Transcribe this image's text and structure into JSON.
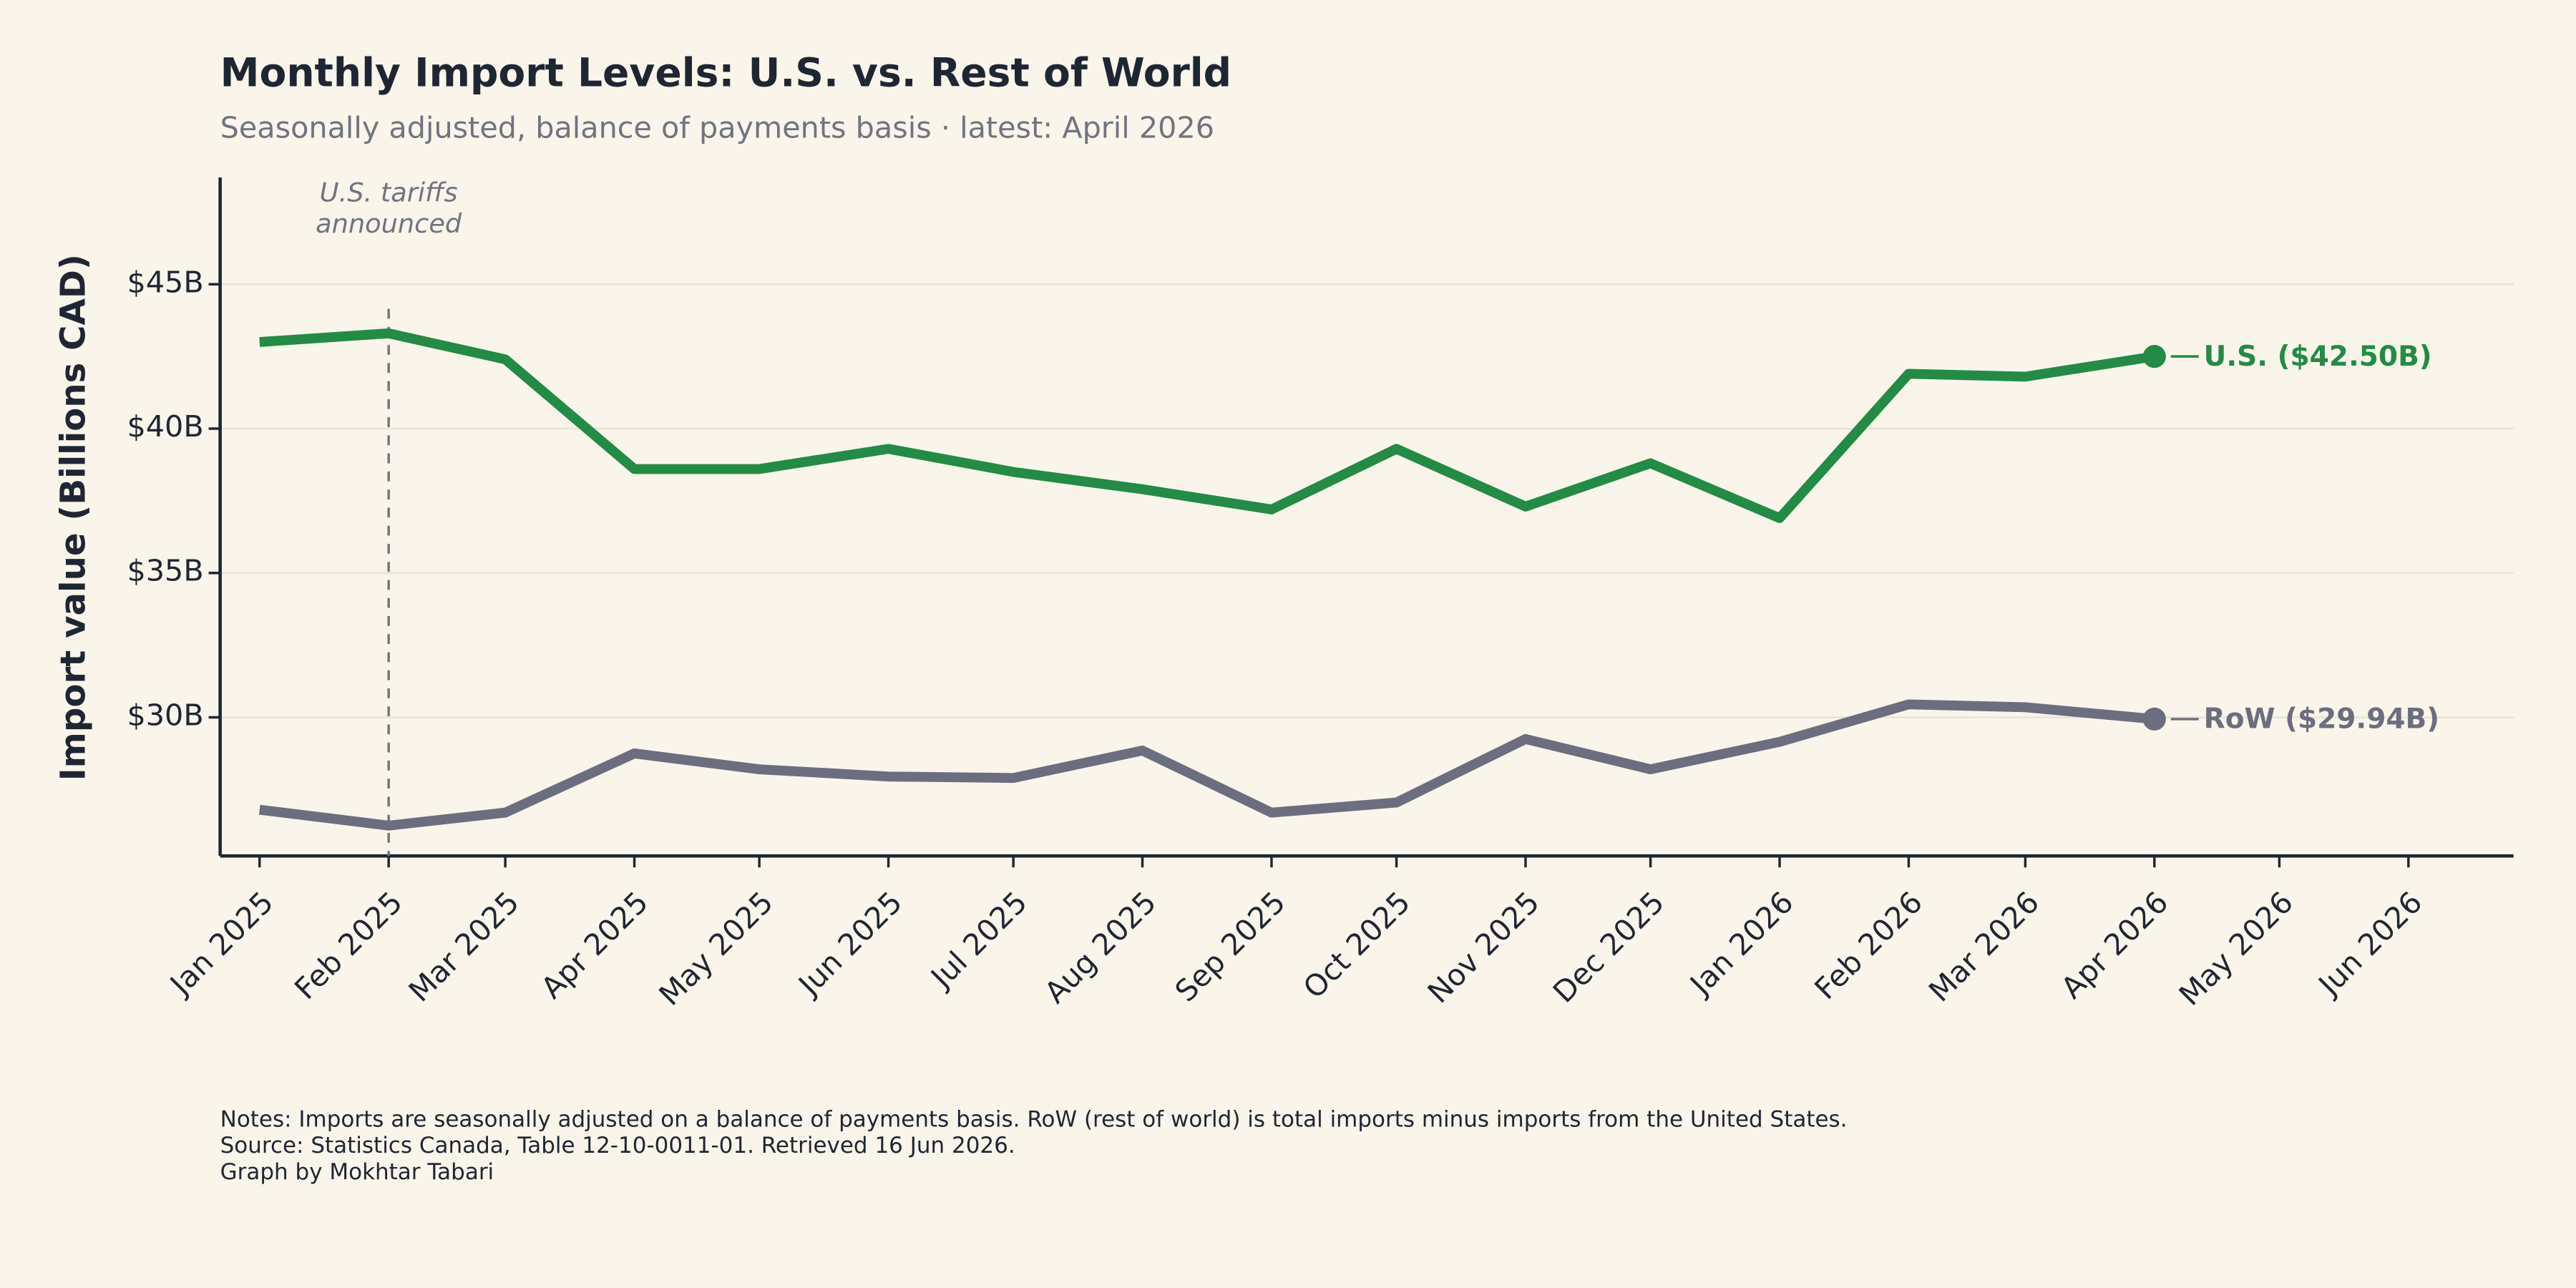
{
  "chart_data": {
    "type": "line",
    "title": "Monthly Import Levels: U.S. vs. Rest of World",
    "subtitle": "Seasonally adjusted, balance of payments basis · latest: April 2026",
    "y_label": "Import value (Billions CAD)",
    "x": [
      "Jan 2025",
      "Feb 2025",
      "Mar 2025",
      "Apr 2025",
      "May 2025",
      "Jun 2025",
      "Jul 2025",
      "Aug 2025",
      "Sep 2025",
      "Oct 2025",
      "Nov 2025",
      "Dec 2025",
      "Jan 2026",
      "Feb 2026",
      "Mar 2026",
      "Apr 2026"
    ],
    "xticks": [
      "Jan 2025",
      "Feb 2025",
      "Mar 2025",
      "Apr 2025",
      "May 2025",
      "Jun 2025",
      "Jul 2025",
      "Aug 2025",
      "Sep 2025",
      "Oct 2025",
      "Nov 2025",
      "Dec 2025",
      "Jan 2026",
      "Feb 2026",
      "Mar 2026",
      "Apr 2026",
      "May 2026",
      "Jun 2026"
    ],
    "series": [
      {
        "name": "U.S. ($42.50B)",
        "color": "#238b45",
        "values": [
          43.0,
          43.3,
          42.4,
          38.6,
          38.6,
          39.3,
          38.5,
          37.9,
          37.2,
          39.3,
          37.3,
          38.8,
          36.9,
          41.9,
          41.8,
          42.5
        ]
      },
      {
        "name": "RoW ($29.94B)",
        "color": "#6b6e7e",
        "values": [
          26.8,
          26.25,
          26.7,
          28.75,
          28.2,
          27.95,
          27.9,
          28.85,
          26.7,
          27.05,
          29.25,
          28.2,
          29.15,
          30.45,
          30.35,
          29.94
        ]
      }
    ],
    "ylim": [
      25.2,
      48.7
    ],
    "yticks": [
      {
        "value": 30,
        "label": "$30B"
      },
      {
        "value": 35,
        "label": "$35B"
      },
      {
        "value": 40,
        "label": "$40B"
      },
      {
        "value": 45,
        "label": "$45B"
      }
    ],
    "grid": true,
    "annotation": {
      "x": "Feb 2025",
      "text_lines": [
        "U.S. tariffs",
        "announced"
      ]
    },
    "notes": [
      "Notes: Imports are seasonally adjusted on a balance of payments basis. RoW (rest of world) is total imports minus imports from the United States.",
      "Source: Statistics Canada, Table 12-10-0011-01. Retrieved 16 Jun 2026.",
      "Graph by Mokhtar Tabari"
    ]
  }
}
